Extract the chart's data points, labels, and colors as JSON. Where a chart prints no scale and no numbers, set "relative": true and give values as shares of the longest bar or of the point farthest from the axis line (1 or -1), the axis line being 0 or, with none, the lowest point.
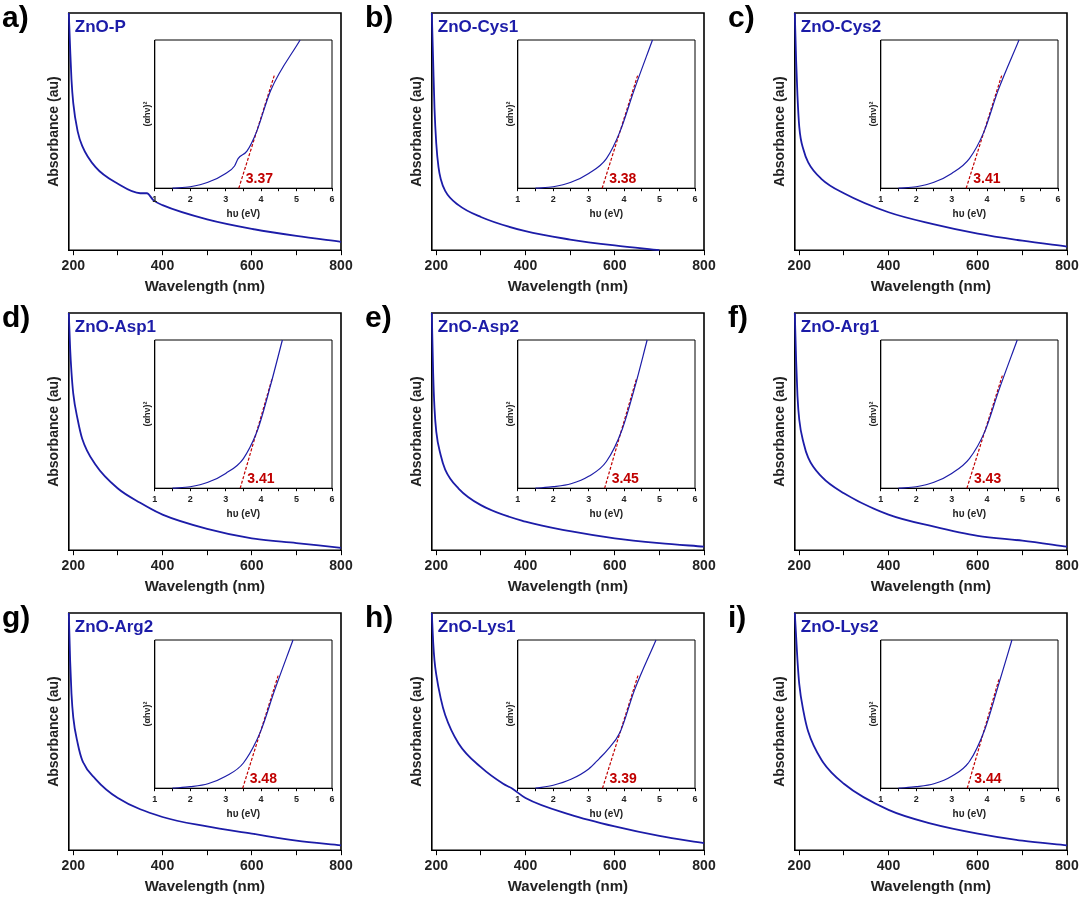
{
  "chart_data": [
    {
      "type": "line",
      "relative": true,
      "title": "ZnO-P",
      "annotations": [
        "a)"
      ],
      "xlabel": "Wavelength (nm)",
      "ylabel": "Absorbance (au)",
      "xlim": [
        190,
        800
      ],
      "xticks": [
        200,
        {
          "value": 300,
          "label": null
        },
        400,
        {
          "value": 500,
          "label": null
        },
        600,
        {
          "value": 700,
          "label": null
        },
        800
      ],
      "grid": false,
      "legend": false,
      "marker": "none",
      "series": [
        {
          "color": "#1c1ca8",
          "x": [
            190,
            193,
            196,
            200,
            210,
            220,
            250,
            300,
            350,
            365,
            380,
            400,
            500,
            600,
            700,
            800
          ],
          "values": [
            1,
            0.85,
            0.72,
            0.62,
            0.5,
            0.44,
            0.35,
            0.28,
            0.24,
            0.24,
            0.21,
            0.19,
            0.13,
            0.09,
            0.06,
            0.035
          ]
        }
      ]
    },
    {
      "type": "line",
      "relative": true,
      "xlabel": "hυ (eV)",
      "ylabel": "(αhν)²",
      "annotations": [
        {
          "text": "3.37",
          "x": 3.37,
          "y": 0
        }
      ],
      "xlim": [
        1,
        6
      ],
      "xticks": [
        1,
        {
          "value": 1.5,
          "label": null
        },
        2,
        {
          "value": 2.5,
          "label": null
        },
        3,
        {
          "value": 3.5,
          "label": null
        },
        4,
        {
          "value": 4.5,
          "label": null
        },
        5,
        {
          "value": 5.5,
          "label": null
        },
        6
      ],
      "grid": false,
      "legend": false,
      "marker": "none",
      "series": [
        {
          "color": "#1c1ca8",
          "x": [
            1.5,
            2,
            2.5,
            3,
            3.25,
            3.35,
            3.6,
            3.87,
            4.27,
            5.1
          ],
          "values": [
            0,
            0.01,
            0.04,
            0.1,
            0.15,
            0.2,
            0.25,
            0.38,
            0.66,
            1
          ]
        },
        {
          "color": "#c00000",
          "line_style": "dashed",
          "x": [
            3.37,
            4.37
          ],
          "values": [
            0,
            0.76
          ]
        }
      ]
    },
    {
      "type": "line",
      "relative": true,
      "title": "ZnO-Cys1",
      "annotations": [
        "b)"
      ],
      "xlabel": "Wavelength (nm)",
      "ylabel": "Absorbance (au)",
      "xlim": [
        190,
        800
      ],
      "xticks": [
        200,
        {
          "value": 300,
          "label": null
        },
        400,
        {
          "value": 500,
          "label": null
        },
        600,
        {
          "value": 700,
          "label": null
        },
        800
      ],
      "grid": false,
      "legend": false,
      "marker": "none",
      "series": [
        {
          "color": "#1c1ca8",
          "x": [
            190,
            193,
            196,
            200,
            205,
            210,
            220,
            250,
            300,
            400,
            500,
            600,
            700
          ],
          "values": [
            1,
            0.8,
            0.6,
            0.45,
            0.35,
            0.3,
            0.25,
            0.19,
            0.14,
            0.08,
            0.045,
            0.02,
            0
          ]
        }
      ]
    },
    {
      "type": "line",
      "relative": true,
      "xlabel": "hυ (eV)",
      "ylabel": "(αhν)²",
      "annotations": [
        {
          "text": "3.38",
          "x": 3.38,
          "y": 0
        }
      ],
      "xlim": [
        1,
        6
      ],
      "xticks": [
        1,
        {
          "value": 1.5,
          "label": null
        },
        2,
        {
          "value": 2.5,
          "label": null
        },
        3,
        {
          "value": 3.5,
          "label": null
        },
        4,
        {
          "value": 4.5,
          "label": null
        },
        5,
        {
          "value": 5.5,
          "label": null
        },
        6
      ],
      "grid": false,
      "legend": false,
      "marker": "none",
      "series": [
        {
          "color": "#1c1ca8",
          "x": [
            1.5,
            2,
            2.5,
            3,
            3.5,
            3.88,
            4.28,
            4.8
          ],
          "values": [
            0,
            0.01,
            0.04,
            0.1,
            0.2,
            0.38,
            0.66,
            1
          ]
        },
        {
          "color": "#c00000",
          "line_style": "dashed",
          "x": [
            3.38,
            4.38
          ],
          "values": [
            0,
            0.76
          ]
        }
      ]
    },
    {
      "type": "line",
      "relative": true,
      "title": "ZnO-Cys2",
      "annotations": [
        "c)"
      ],
      "xlabel": "Wavelength (nm)",
      "ylabel": "Absorbance (au)",
      "xlim": [
        190,
        800
      ],
      "xticks": [
        200,
        {
          "value": 300,
          "label": null
        },
        400,
        {
          "value": 500,
          "label": null
        },
        600,
        {
          "value": 700,
          "label": null
        },
        800
      ],
      "grid": false,
      "legend": false,
      "marker": "none",
      "series": [
        {
          "color": "#1c1ca8",
          "x": [
            190,
            193,
            196,
            200,
            210,
            220,
            250,
            300,
            400,
            500,
            600,
            700,
            800
          ],
          "values": [
            1,
            0.8,
            0.65,
            0.52,
            0.42,
            0.37,
            0.3,
            0.24,
            0.16,
            0.11,
            0.07,
            0.04,
            0.015
          ]
        }
      ]
    },
    {
      "type": "line",
      "relative": true,
      "xlabel": "hυ (eV)",
      "ylabel": "(αhν)²",
      "annotations": [
        {
          "text": "3.41",
          "x": 3.41,
          "y": 0
        }
      ],
      "xlim": [
        1,
        6
      ],
      "xticks": [
        1,
        {
          "value": 1.5,
          "label": null
        },
        2,
        {
          "value": 2.5,
          "label": null
        },
        3,
        {
          "value": 3.5,
          "label": null
        },
        4,
        {
          "value": 4.5,
          "label": null
        },
        5,
        {
          "value": 5.5,
          "label": null
        },
        6
      ],
      "grid": false,
      "legend": false,
      "marker": "none",
      "series": [
        {
          "color": "#1c1ca8",
          "x": [
            1.5,
            2,
            2.5,
            3,
            3.5,
            3.91,
            4.31,
            4.9
          ],
          "values": [
            0,
            0.01,
            0.04,
            0.1,
            0.2,
            0.38,
            0.66,
            1
          ]
        },
        {
          "color": "#c00000",
          "line_style": "dashed",
          "x": [
            3.41,
            4.41
          ],
          "values": [
            0,
            0.76
          ]
        }
      ]
    },
    {
      "type": "line",
      "relative": true,
      "title": "ZnO-Asp1",
      "annotations": [
        "d)"
      ],
      "xlabel": "Wavelength (nm)",
      "ylabel": "Absorbance (au)",
      "xlim": [
        190,
        800
      ],
      "xticks": [
        200,
        {
          "value": 300,
          "label": null
        },
        400,
        {
          "value": 500,
          "label": null
        },
        600,
        {
          "value": 700,
          "label": null
        },
        800
      ],
      "grid": false,
      "legend": false,
      "marker": "none",
      "series": [
        {
          "color": "#1c1ca8",
          "x": [
            190,
            193,
            196,
            200,
            210,
            220,
            250,
            300,
            350,
            400,
            500,
            600,
            700,
            800
          ],
          "values": [
            1,
            0.85,
            0.75,
            0.66,
            0.55,
            0.47,
            0.36,
            0.26,
            0.2,
            0.15,
            0.09,
            0.05,
            0.03,
            0.01
          ]
        }
      ]
    },
    {
      "type": "line",
      "relative": true,
      "xlabel": "hυ (eV)",
      "ylabel": "(αhν)²",
      "annotations": [
        {
          "text": "3.41",
          "x": 3.41,
          "y": 0
        }
      ],
      "xlim": [
        1,
        6
      ],
      "xticks": [
        1,
        {
          "value": 1.5,
          "label": null
        },
        2,
        {
          "value": 2.5,
          "label": null
        },
        3,
        {
          "value": 3.5,
          "label": null
        },
        4,
        {
          "value": 4.5,
          "label": null
        },
        5,
        {
          "value": 5.5,
          "label": null
        },
        6
      ],
      "grid": false,
      "legend": false,
      "marker": "none",
      "series": [
        {
          "color": "#1c1ca8",
          "x": [
            1.5,
            2,
            2.5,
            3,
            3.5,
            3.91,
            4.25,
            4.6
          ],
          "values": [
            0,
            0.01,
            0.04,
            0.1,
            0.2,
            0.4,
            0.68,
            1
          ]
        },
        {
          "color": "#c00000",
          "line_style": "dashed",
          "x": [
            3.41,
            4.31
          ],
          "values": [
            0,
            0.74
          ]
        }
      ]
    },
    {
      "type": "line",
      "relative": true,
      "title": "ZnO-Asp2",
      "annotations": [
        "e)"
      ],
      "xlabel": "Wavelength (nm)",
      "ylabel": "Absorbance (au)",
      "xlim": [
        190,
        800
      ],
      "xticks": [
        200,
        {
          "value": 300,
          "label": null
        },
        400,
        {
          "value": 500,
          "label": null
        },
        600,
        {
          "value": 700,
          "label": null
        },
        800
      ],
      "grid": false,
      "legend": false,
      "marker": "none",
      "series": [
        {
          "color": "#1c1ca8",
          "x": [
            190,
            193,
            196,
            200,
            210,
            220,
            250,
            300,
            400,
            500,
            600,
            700,
            800
          ],
          "values": [
            1,
            0.75,
            0.6,
            0.5,
            0.4,
            0.34,
            0.26,
            0.19,
            0.12,
            0.08,
            0.05,
            0.03,
            0.015
          ]
        }
      ]
    },
    {
      "type": "line",
      "relative": true,
      "xlabel": "hυ (eV)",
      "ylabel": "(αhν)²",
      "annotations": [
        {
          "text": "3.45",
          "x": 3.45,
          "y": 0
        }
      ],
      "xlim": [
        1,
        6
      ],
      "xticks": [
        1,
        {
          "value": 1.5,
          "label": null
        },
        2,
        {
          "value": 2.5,
          "label": null
        },
        3,
        {
          "value": 3.5,
          "label": null
        },
        4,
        {
          "value": 4.5,
          "label": null
        },
        5,
        {
          "value": 5.5,
          "label": null
        },
        6
      ],
      "grid": false,
      "legend": false,
      "marker": "none",
      "series": [
        {
          "color": "#1c1ca8",
          "x": [
            1.5,
            2,
            2.5,
            3,
            3.5,
            3.95,
            4.3,
            4.65
          ],
          "values": [
            0,
            0.01,
            0.03,
            0.08,
            0.18,
            0.4,
            0.68,
            1
          ]
        },
        {
          "color": "#c00000",
          "line_style": "dashed",
          "x": [
            3.45,
            4.35
          ],
          "values": [
            0,
            0.74
          ]
        }
      ]
    },
    {
      "type": "line",
      "relative": true,
      "title": "ZnO-Arg1",
      "annotations": [
        "f)"
      ],
      "xlabel": "Wavelength (nm)",
      "ylabel": "Absorbance (au)",
      "xlim": [
        190,
        800
      ],
      "xticks": [
        200,
        {
          "value": 300,
          "label": null
        },
        400,
        {
          "value": 500,
          "label": null
        },
        600,
        {
          "value": 700,
          "label": null
        },
        800
      ],
      "grid": false,
      "legend": false,
      "marker": "none",
      "series": [
        {
          "color": "#1c1ca8",
          "x": [
            190,
            193,
            196,
            200,
            210,
            220,
            250,
            300,
            400,
            500,
            600,
            700,
            800
          ],
          "values": [
            1,
            0.8,
            0.65,
            0.55,
            0.45,
            0.39,
            0.31,
            0.24,
            0.15,
            0.1,
            0.06,
            0.04,
            0.015
          ]
        }
      ]
    },
    {
      "type": "line",
      "relative": true,
      "xlabel": "hυ (eV)",
      "ylabel": "(αhν)²",
      "annotations": [
        {
          "text": "3.43",
          "x": 3.43,
          "y": 0
        }
      ],
      "xlim": [
        1,
        6
      ],
      "xticks": [
        1,
        {
          "value": 1.5,
          "label": null
        },
        2,
        {
          "value": 2.5,
          "label": null
        },
        3,
        {
          "value": 3.5,
          "label": null
        },
        4,
        {
          "value": 4.5,
          "label": null
        },
        5,
        {
          "value": 5.5,
          "label": null
        },
        6
      ],
      "grid": false,
      "legend": false,
      "marker": "none",
      "series": [
        {
          "color": "#1c1ca8",
          "x": [
            1.5,
            2,
            2.5,
            3,
            3.5,
            3.93,
            4.33,
            4.85
          ],
          "values": [
            0,
            0.01,
            0.04,
            0.1,
            0.2,
            0.38,
            0.66,
            1
          ]
        },
        {
          "color": "#c00000",
          "line_style": "dashed",
          "x": [
            3.43,
            4.43
          ],
          "values": [
            0,
            0.76
          ]
        }
      ]
    },
    {
      "type": "line",
      "relative": true,
      "title": "ZnO-Arg2",
      "annotations": [
        "g)"
      ],
      "xlabel": "Wavelength (nm)",
      "ylabel": "Absorbance (au)",
      "xlim": [
        190,
        800
      ],
      "xticks": [
        200,
        {
          "value": 300,
          "label": null
        },
        400,
        {
          "value": 500,
          "label": null
        },
        600,
        {
          "value": 700,
          "label": null
        },
        800
      ],
      "grid": false,
      "legend": false,
      "marker": "none",
      "series": [
        {
          "color": "#1c1ca8",
          "x": [
            190,
            193,
            196,
            200,
            210,
            220,
            250,
            300,
            400,
            500,
            600,
            700,
            800
          ],
          "values": [
            1,
            0.8,
            0.66,
            0.56,
            0.45,
            0.38,
            0.3,
            0.22,
            0.14,
            0.1,
            0.07,
            0.04,
            0.02
          ]
        }
      ]
    },
    {
      "type": "line",
      "relative": true,
      "xlabel": "hυ (eV)",
      "ylabel": "(αhν)²",
      "annotations": [
        {
          "text": "3.48",
          "x": 3.48,
          "y": 0
        }
      ],
      "xlim": [
        1,
        6
      ],
      "xticks": [
        1,
        {
          "value": 1.5,
          "label": null
        },
        2,
        {
          "value": 2.5,
          "label": null
        },
        3,
        {
          "value": 3.5,
          "label": null
        },
        4,
        {
          "value": 4.5,
          "label": null
        },
        5,
        {
          "value": 5.5,
          "label": null
        },
        6
      ],
      "grid": false,
      "legend": false,
      "marker": "none",
      "series": [
        {
          "color": "#1c1ca8",
          "x": [
            1.5,
            2,
            2.5,
            3,
            3.5,
            3.98,
            4.38,
            4.9
          ],
          "values": [
            0,
            0.01,
            0.03,
            0.08,
            0.17,
            0.38,
            0.66,
            1
          ]
        },
        {
          "color": "#c00000",
          "line_style": "dashed",
          "x": [
            3.48,
            4.48
          ],
          "values": [
            0,
            0.76
          ]
        }
      ]
    },
    {
      "type": "line",
      "relative": true,
      "title": "ZnO-Lys1",
      "annotations": [
        "h)"
      ],
      "xlabel": "Wavelength (nm)",
      "ylabel": "Absorbance (au)",
      "xlim": [
        190,
        800
      ],
      "xticks": [
        200,
        {
          "value": 300,
          "label": null
        },
        400,
        {
          "value": 500,
          "label": null
        },
        600,
        {
          "value": 700,
          "label": null
        },
        800
      ],
      "grid": false,
      "legend": false,
      "marker": "none",
      "series": [
        {
          "color": "#1c1ca8",
          "x": [
            190,
            193,
            196,
            200,
            210,
            220,
            250,
            300,
            350,
            370,
            400,
            500,
            600,
            700,
            800
          ],
          "values": [
            1,
            0.88,
            0.8,
            0.74,
            0.64,
            0.57,
            0.45,
            0.35,
            0.28,
            0.26,
            0.22,
            0.15,
            0.1,
            0.06,
            0.03
          ]
        }
      ]
    },
    {
      "type": "line",
      "relative": true,
      "xlabel": "hυ (eV)",
      "ylabel": "(αhν)²",
      "annotations": [
        {
          "text": "3.39",
          "x": 3.39,
          "y": 0
        }
      ],
      "xlim": [
        1,
        6
      ],
      "xticks": [
        1,
        {
          "value": 1.5,
          "label": null
        },
        2,
        {
          "value": 2.5,
          "label": null
        },
        3,
        {
          "value": 3.5,
          "label": null
        },
        4,
        {
          "value": 4.5,
          "label": null
        },
        5,
        {
          "value": 5.5,
          "label": null
        },
        6
      ],
      "grid": false,
      "legend": false,
      "marker": "none",
      "series": [
        {
          "color": "#1c1ca8",
          "x": [
            1.5,
            2,
            2.5,
            3,
            3.3,
            3.5,
            3.89,
            4.29,
            4.9
          ],
          "values": [
            0,
            0.02,
            0.06,
            0.13,
            0.2,
            0.25,
            0.38,
            0.66,
            1
          ]
        },
        {
          "color": "#c00000",
          "line_style": "dashed",
          "x": [
            3.39,
            4.39
          ],
          "values": [
            0,
            0.76
          ]
        }
      ]
    },
    {
      "type": "line",
      "relative": true,
      "title": "ZnO-Lys2",
      "annotations": [
        "i)"
      ],
      "xlabel": "Wavelength (nm)",
      "ylabel": "Absorbance (au)",
      "xlim": [
        190,
        800
      ],
      "xticks": [
        200,
        {
          "value": 300,
          "label": null
        },
        400,
        {
          "value": 500,
          "label": null
        },
        600,
        {
          "value": 700,
          "label": null
        },
        800
      ],
      "grid": false,
      "legend": false,
      "marker": "none",
      "series": [
        {
          "color": "#1c1ca8",
          "x": [
            190,
            193,
            196,
            200,
            210,
            220,
            250,
            300,
            400,
            500,
            600,
            700,
            800
          ],
          "values": [
            1,
            0.9,
            0.8,
            0.7,
            0.58,
            0.5,
            0.38,
            0.28,
            0.17,
            0.11,
            0.07,
            0.04,
            0.02
          ]
        }
      ]
    },
    {
      "type": "line",
      "relative": true,
      "xlabel": "hυ (eV)",
      "ylabel": "(αhν)²",
      "annotations": [
        {
          "text": "3.44",
          "x": 3.44,
          "y": 0
        }
      ],
      "xlim": [
        1,
        6
      ],
      "xticks": [
        1,
        {
          "value": 1.5,
          "label": null
        },
        2,
        {
          "value": 2.5,
          "label": null
        },
        3,
        {
          "value": 3.5,
          "label": null
        },
        4,
        {
          "value": 4.5,
          "label": null
        },
        5,
        {
          "value": 5.5,
          "label": null
        },
        6
      ],
      "grid": false,
      "legend": false,
      "marker": "none",
      "series": [
        {
          "color": "#1c1ca8",
          "x": [
            1.5,
            2,
            2.5,
            3,
            3.5,
            3.94,
            4.3,
            4.7
          ],
          "values": [
            0,
            0.01,
            0.03,
            0.08,
            0.18,
            0.4,
            0.68,
            1
          ]
        },
        {
          "color": "#c00000",
          "line_style": "dashed",
          "x": [
            3.44,
            4.34
          ],
          "values": [
            0,
            0.74
          ]
        }
      ]
    }
  ]
}
